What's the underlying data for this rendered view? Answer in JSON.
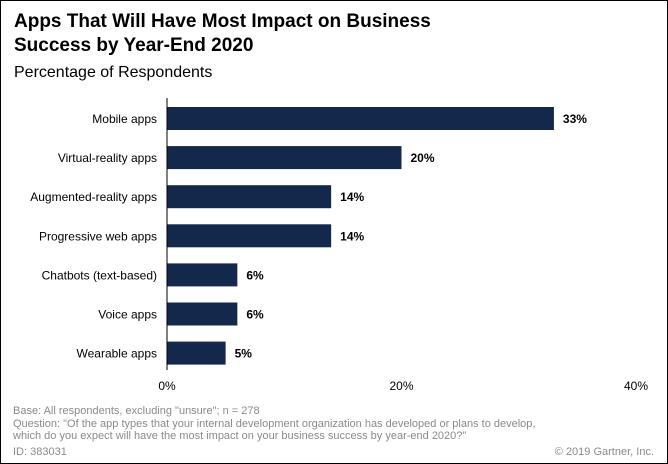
{
  "chart_data": {
    "type": "bar",
    "orientation": "horizontal",
    "title_line1": "Apps That Will Have Most Impact on Business",
    "title_line2": "Success by Year-End 2020",
    "subtitle": "Percentage of Respondents",
    "categories": [
      "Mobile apps",
      "Virtual-reality apps",
      "Augmented-reality apps",
      "Progressive web apps",
      "Chatbots (text-based)",
      "Voice apps",
      "Wearable apps"
    ],
    "values": [
      33,
      20,
      14,
      14,
      6,
      6,
      5
    ],
    "value_labels": [
      "33%",
      "20%",
      "14%",
      "14%",
      "6%",
      "6%",
      "5%"
    ],
    "xlim": [
      0,
      40
    ],
    "x_ticks": [
      0,
      20,
      40
    ],
    "x_tick_labels": [
      "0%",
      "20%",
      "40%"
    ],
    "bar_color": "#14284b",
    "grid": false,
    "legend": false
  },
  "footer": {
    "base": "Base: All respondents, excluding \"unsure\"; n = 278",
    "question_line1": "Question: \"Of the app types that your internal development organization has developed or plans to develop,",
    "question_line2": "which do you expect will have the most impact on your business success by year-end 2020?\"",
    "id": "ID: 383031",
    "copyright": "© 2019 Gartner, Inc."
  }
}
